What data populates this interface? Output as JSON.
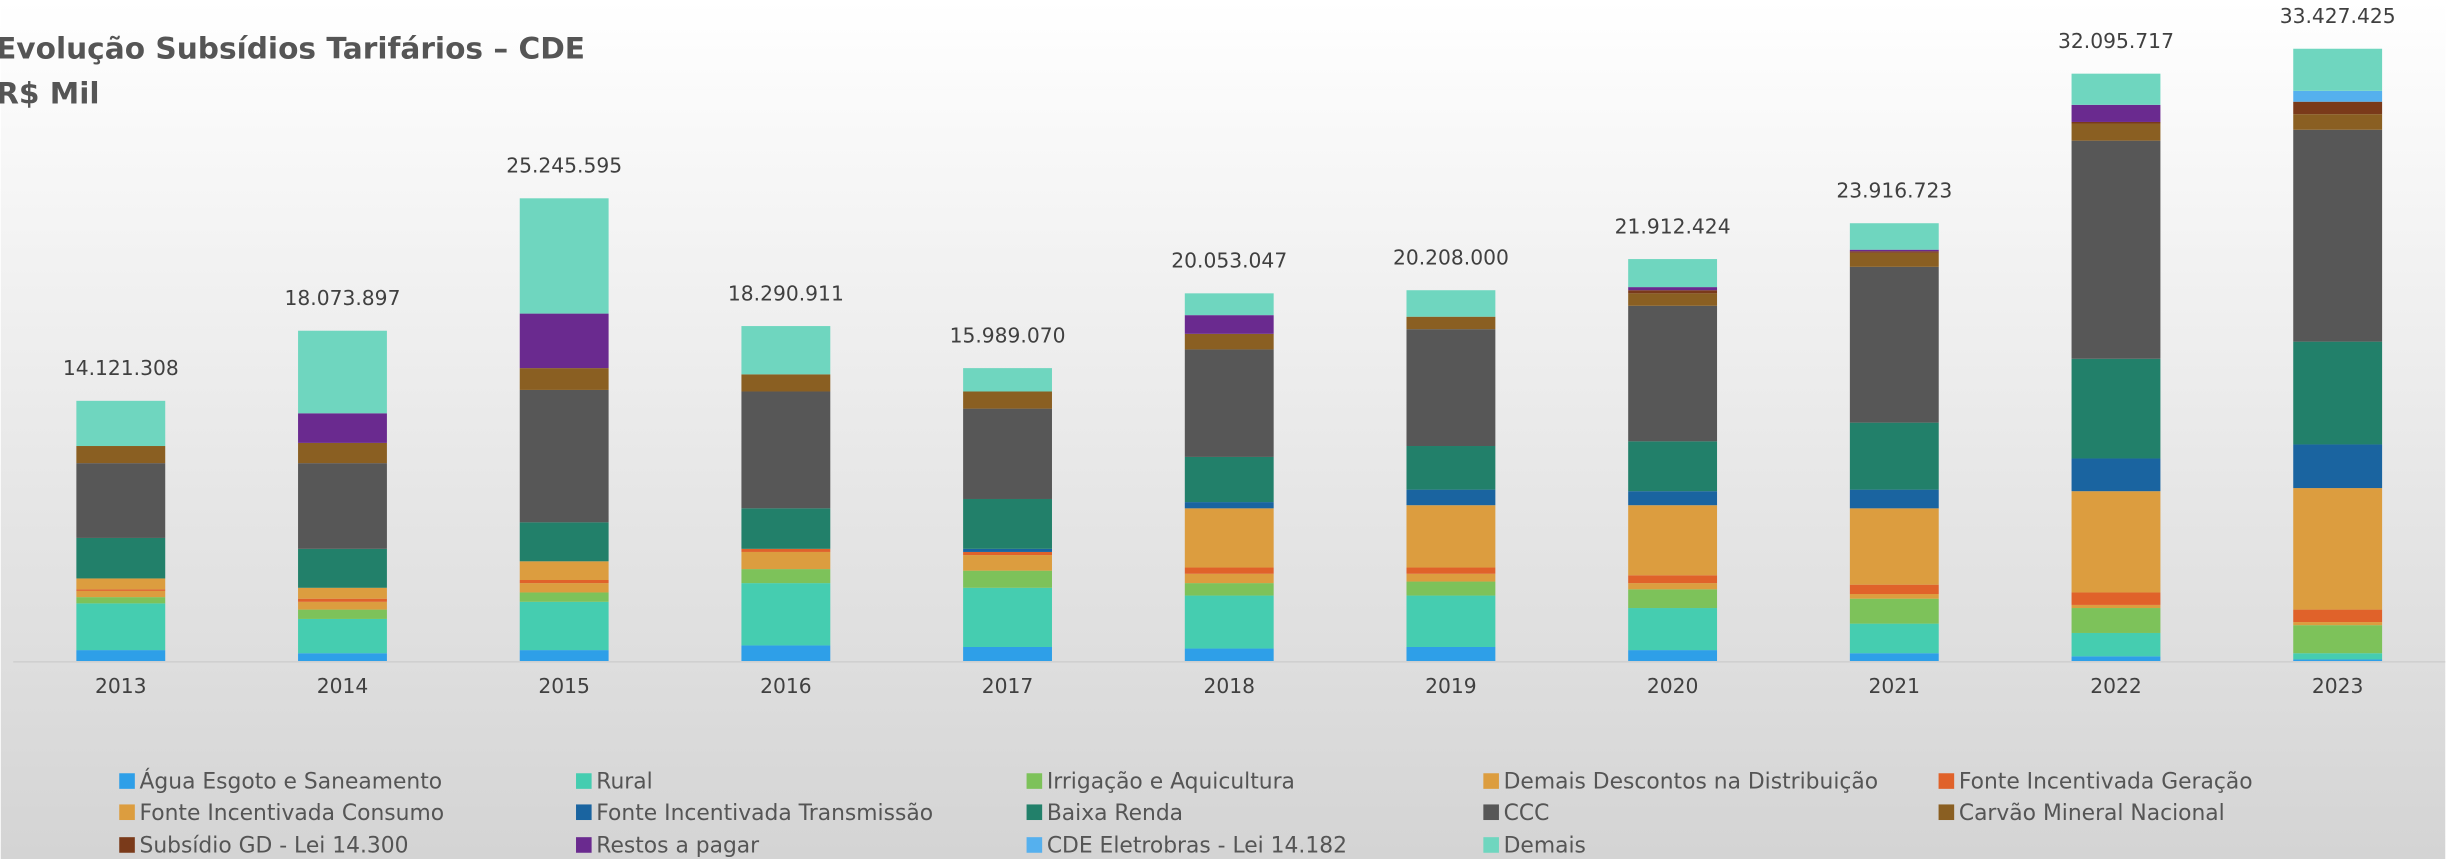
{
  "chart_data": {
    "type": "bar",
    "stacked": true,
    "title": "Evolução Subsídios Tarifários – CDE",
    "subtitle": "R$ Mil",
    "categories": [
      "2013",
      "2014",
      "2015",
      "2016",
      "2017",
      "2018",
      "2019",
      "2020",
      "2021",
      "2022",
      "2023"
    ],
    "totals": {
      "values": [
        14121308,
        18073897,
        25245595,
        18290911,
        15989070,
        20053047,
        20208000,
        21912424,
        23916723,
        32095717,
        33427425
      ],
      "value_labels": [
        "14.121.308",
        "18.073.897",
        "25.245.595",
        "18.290.911",
        "15.989.070",
        "20.053.047",
        "20.208.000",
        "21.912.424",
        "23.916.723",
        "32.095.717",
        "33.427.425"
      ]
    },
    "series": [
      {
        "name": "Água Esgoto e Saneamento",
        "color": "#2e9fe8",
        "values": [
          595000,
          425000,
          595000,
          850000,
          765000,
          680000,
          765000,
          595000,
          425000,
          255000,
          85000
        ]
      },
      {
        "name": "Rural",
        "color": "#45cdb0",
        "values": [
          2550000,
          1870000,
          2635000,
          3400000,
          3230000,
          2890000,
          2805000,
          2295000,
          1615000,
          1275000,
          340000
        ]
      },
      {
        "name": "Irrigação e Aquicultura",
        "color": "#7dc25a",
        "values": [
          340000,
          510000,
          510000,
          765000,
          935000,
          680000,
          765000,
          1020000,
          1360000,
          1360000,
          1530000
        ]
      },
      {
        "name": "Demais Descontos na Distribuição",
        "color": "#dc9d3f",
        "values": [
          340000,
          425000,
          510000,
          935000,
          850000,
          510000,
          425000,
          340000,
          255000,
          170000,
          170000
        ]
      },
      {
        "name": "Fonte Incentivada Geração",
        "color": "#e0622a",
        "values": [
          85000,
          170000,
          170000,
          170000,
          170000,
          340000,
          340000,
          425000,
          510000,
          680000,
          680000
        ]
      },
      {
        "name": "Fonte Incentivada Consumo",
        "color": "#dc9d3f",
        "values": [
          595000,
          595000,
          1020000,
          0,
          0,
          3230000,
          3400000,
          3825000,
          4165000,
          5525000,
          6630000
        ]
      },
      {
        "name": "Fonte Incentivada Transmissão",
        "color": "#1a64a0",
        "values": [
          0,
          0,
          0,
          0,
          170000,
          340000,
          850000,
          765000,
          1020000,
          1785000,
          2380000
        ]
      },
      {
        "name": "Baixa Renda",
        "color": "#22806a",
        "values": [
          2210000,
          2125000,
          2125000,
          2210000,
          2720000,
          2465000,
          2380000,
          2720000,
          3655000,
          5440000,
          5610000
        ]
      },
      {
        "name": "CCC",
        "color": "#575757",
        "values": [
          4080000,
          4675000,
          7225000,
          6375000,
          4930000,
          5865000,
          6375000,
          7395000,
          8500000,
          11900000,
          11560000
        ]
      },
      {
        "name": "Carvão Mineral Nacional",
        "color": "#8a5f22",
        "values": [
          935000,
          1105000,
          1190000,
          935000,
          935000,
          850000,
          680000,
          680000,
          765000,
          935000,
          850000
        ]
      },
      {
        "name": "Subsídio GD - Lei 14.300",
        "color": "#7a3a1a",
        "values": [
          0,
          0,
          0,
          0,
          0,
          0,
          0,
          170000,
          85000,
          85000,
          680000
        ]
      },
      {
        "name": "Restos a pagar",
        "color": "#6a2a8f",
        "values": [
          0,
          1615000,
          2975000,
          0,
          0,
          1020000,
          0,
          170000,
          85000,
          935000,
          0
        ]
      },
      {
        "name": "CDE Eletrobras - Lei 14.182",
        "color": "#55b0ee",
        "values": [
          0,
          0,
          0,
          0,
          0,
          0,
          0,
          0,
          0,
          0,
          595000
        ]
      },
      {
        "name": "Demais",
        "color": "#6fd6bf",
        "values": [
          2465000,
          4505000,
          6290000,
          2635000,
          1275000,
          1190000,
          1445000,
          1530000,
          1445000,
          1700000,
          2295000
        ]
      }
    ]
  }
}
